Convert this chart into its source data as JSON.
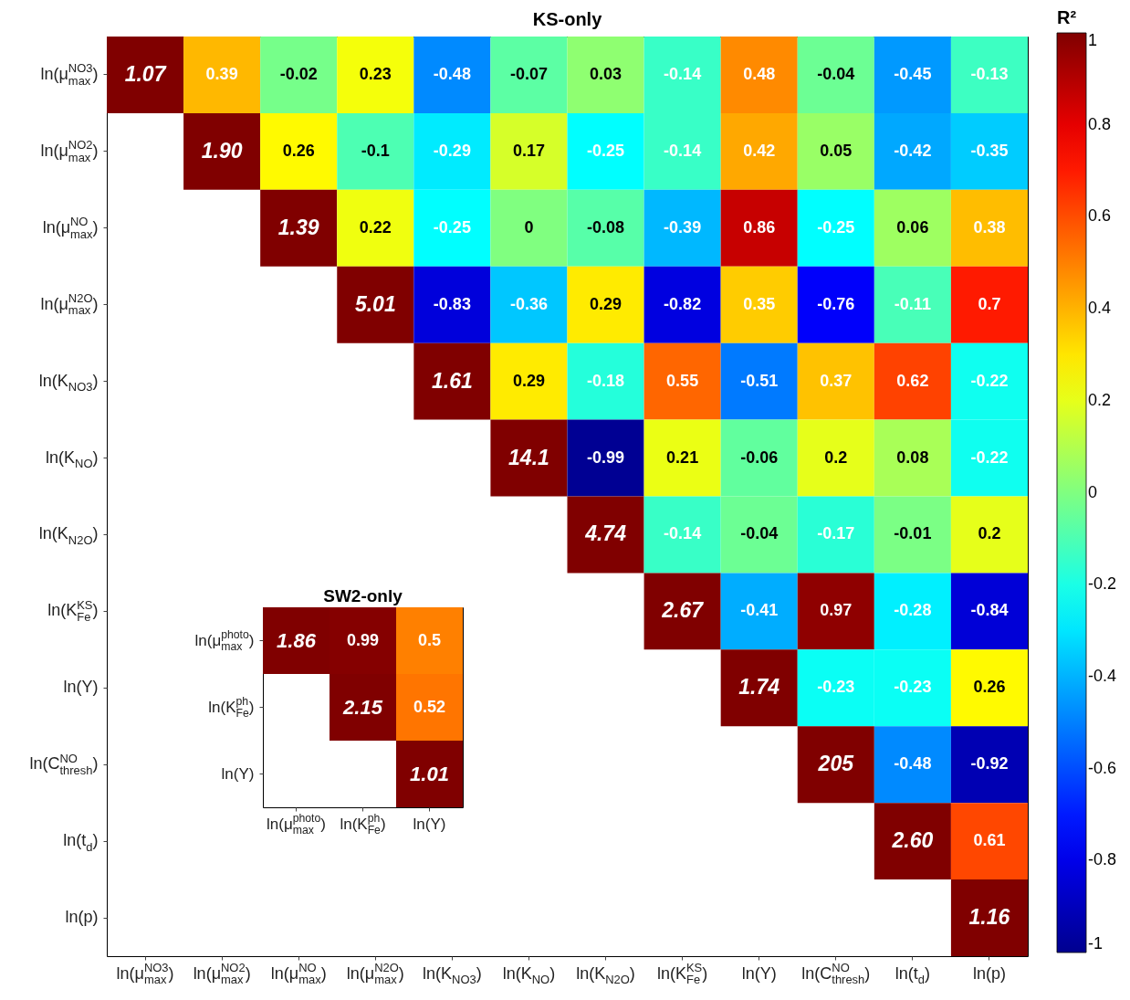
{
  "chart_data": [
    {
      "type": "heatmap",
      "title": "KS-only",
      "clabel": "R²",
      "clim": [
        -1,
        1
      ],
      "cticks": [
        -1,
        -0.8,
        -0.6,
        -0.4,
        -0.2,
        0,
        0.2,
        0.4,
        0.6,
        0.8,
        1
      ],
      "categories": [
        "ln(μ$^{NO3}$$_{max}$)",
        "ln(μ$^{NO2}$$_{max}$)",
        "ln(μ$^{NO}$$_{max}$)",
        "ln(μ$^{N2O}$$_{max}$)",
        "ln(K$_{NO3}$)",
        "ln(K$_{NO}$)",
        "ln(K$_{N2O}$)",
        "ln(K$^{KS}$$_{Fe}$)",
        "ln(Y)",
        "ln(C$^{NO}$$_{thresh}$)",
        "ln(t$_{d}$)",
        "ln(p)"
      ],
      "y_categories": [
        "ln(μ$^{NO3}$$_{max}$)",
        "ln(μ$^{NO2}$$_{max}$)",
        "ln(μ$^{NO}$$_{max}$)",
        "ln(μ$^{N2O}$$_{max}$)",
        "ln(K$_{NO3}$)",
        "ln(K$_{NO}$)",
        "ln(K$_{N2O}$)",
        "ln(K$^{KS}$$_{Fe}$)",
        "ln(Y)",
        "ln(C$^{NO}$$_{thresh}$)",
        "ln(t$_{d}$)",
        "ln(p)"
      ],
      "cells": [
        [
          1.07,
          0.39,
          -0.02,
          0.23,
          -0.48,
          -0.07,
          0.03,
          -0.14,
          0.48,
          -0.04,
          -0.45,
          -0.13
        ],
        [
          null,
          1.9,
          0.26,
          -0.1,
          -0.29,
          0.17,
          -0.25,
          -0.14,
          0.42,
          0.05,
          -0.42,
          -0.35
        ],
        [
          null,
          null,
          1.39,
          0.22,
          -0.25,
          0,
          -0.08,
          -0.39,
          0.86,
          -0.25,
          0.06,
          0.38
        ],
        [
          null,
          null,
          null,
          5.01,
          -0.83,
          -0.36,
          0.29,
          -0.82,
          0.35,
          -0.76,
          -0.11,
          0.7
        ],
        [
          null,
          null,
          null,
          null,
          1.61,
          0.29,
          -0.18,
          0.55,
          -0.51,
          0.37,
          0.62,
          -0.22
        ],
        [
          null,
          null,
          null,
          null,
          null,
          14.1,
          -0.99,
          0.21,
          -0.06,
          0.2,
          0.08,
          -0.22
        ],
        [
          null,
          null,
          null,
          null,
          null,
          null,
          4.74,
          -0.14,
          -0.04,
          -0.17,
          -0.01,
          0.2
        ],
        [
          null,
          null,
          null,
          null,
          null,
          null,
          null,
          2.67,
          -0.41,
          0.97,
          -0.28,
          -0.84
        ],
        [
          null,
          null,
          null,
          null,
          null,
          null,
          null,
          null,
          1.74,
          -0.23,
          -0.23,
          0.26
        ],
        [
          null,
          null,
          null,
          null,
          null,
          null,
          null,
          null,
          null,
          205,
          -0.48,
          -0.92
        ],
        [
          null,
          null,
          null,
          null,
          null,
          null,
          null,
          null,
          null,
          null,
          2.6,
          0.61
        ],
        [
          null,
          null,
          null,
          null,
          null,
          null,
          null,
          null,
          null,
          null,
          null,
          1.16
        ]
      ],
      "cell_labels": [
        [
          "1.07",
          "0.39",
          "-0.02",
          "0.23",
          "-0.48",
          "-0.07",
          "0.03",
          "-0.14",
          "0.48",
          "-0.04",
          "-0.45",
          "-0.13"
        ],
        [
          null,
          "1.90",
          "0.26",
          "-0.1",
          "-0.29",
          "0.17",
          "-0.25",
          "-0.14",
          "0.42",
          "0.05",
          "-0.42",
          "-0.35"
        ],
        [
          null,
          null,
          "1.39",
          "0.22",
          "-0.25",
          "0",
          "-0.08",
          "-0.39",
          "0.86",
          "-0.25",
          "0.06",
          "0.38"
        ],
        [
          null,
          null,
          null,
          "5.01",
          "-0.83",
          "-0.36",
          "0.29",
          "-0.82",
          "0.35",
          "-0.76",
          "-0.11",
          "0.7"
        ],
        [
          null,
          null,
          null,
          null,
          "1.61",
          "0.29",
          "-0.18",
          "0.55",
          "-0.51",
          "0.37",
          "0.62",
          "-0.22"
        ],
        [
          null,
          null,
          null,
          null,
          null,
          "14.1",
          "-0.99",
          "0.21",
          "-0.06",
          "0.2",
          "0.08",
          "-0.22"
        ],
        [
          null,
          null,
          null,
          null,
          null,
          null,
          "4.74",
          "-0.14",
          "-0.04",
          "-0.17",
          "-0.01",
          "0.2"
        ],
        [
          null,
          null,
          null,
          null,
          null,
          null,
          null,
          "2.67",
          "-0.41",
          "0.97",
          "-0.28",
          "-0.84"
        ],
        [
          null,
          null,
          null,
          null,
          null,
          null,
          null,
          null,
          "1.74",
          "-0.23",
          "-0.23",
          "0.26"
        ],
        [
          null,
          null,
          null,
          null,
          null,
          null,
          null,
          null,
          null,
          "205",
          "-0.48",
          "-0.92"
        ],
        [
          null,
          null,
          null,
          null,
          null,
          null,
          null,
          null,
          null,
          null,
          "2.60",
          "0.61"
        ],
        [
          null,
          null,
          null,
          null,
          null,
          null,
          null,
          null,
          null,
          null,
          null,
          "1.16"
        ]
      ]
    },
    {
      "type": "heatmap",
      "title": "SW2-only",
      "categories": [
        "ln(μ$^{photo}$$_{max}$)",
        "ln(K$^{ph}$$_{Fe}$)",
        "ln(Y)"
      ],
      "y_categories": [
        "ln(μ$^{photo}$$_{max}$)",
        "ln(K$^{ph}$$_{Fe}$)",
        "ln(Y)"
      ],
      "cells": [
        [
          1.86,
          0.99,
          0.5
        ],
        [
          null,
          2.15,
          0.52
        ],
        [
          null,
          null,
          1.01
        ]
      ],
      "cell_labels": [
        [
          "1.86",
          "0.99",
          "0.5"
        ],
        [
          null,
          "2.15",
          "0.52"
        ],
        [
          null,
          null,
          "1.01"
        ]
      ]
    }
  ]
}
